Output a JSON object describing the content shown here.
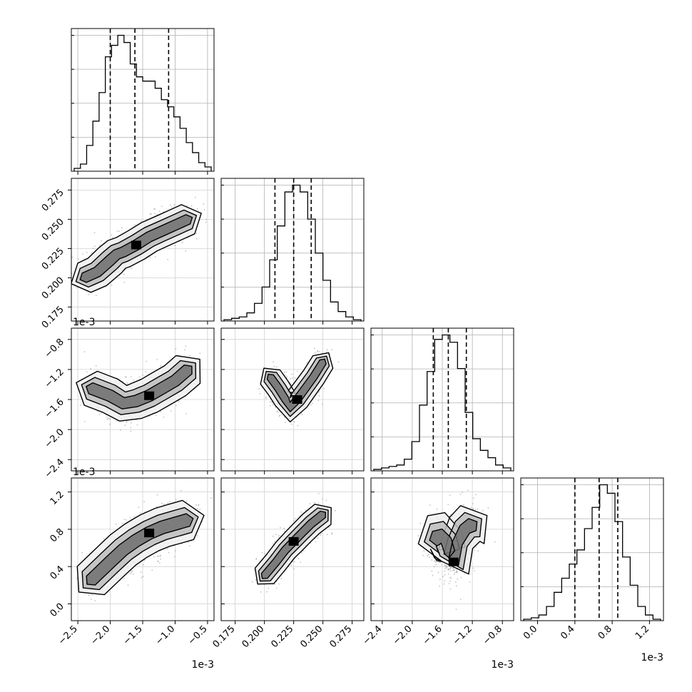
{
  "chart_data": {
    "type": "corner",
    "grid": true,
    "variables": [
      {
        "range": [
          -2.6,
          -0.4
        ],
        "ticks": [
          -2.5,
          -2.0,
          -1.5,
          -1.0,
          -0.5
        ],
        "tick_labels": [
          "−2.5",
          "−2.0",
          "−1.5",
          "−1.0",
          "−0.5"
        ],
        "offset_label": "1e-3",
        "quantiles": [
          -2.0,
          -1.62,
          -1.1
        ]
      },
      {
        "range": [
          0.163,
          0.285
        ],
        "ticks": [
          0.175,
          0.2,
          0.225,
          0.25,
          0.275
        ],
        "tick_labels": [
          "0.175",
          "0.200",
          "0.225",
          "0.250",
          "0.275"
        ],
        "offset_label": "",
        "quantiles": [
          0.209,
          0.225,
          0.24
        ]
      },
      {
        "range": [
          -2.55,
          -0.65
        ],
        "ticks": [
          -2.4,
          -2.0,
          -1.6,
          -1.2,
          -0.8
        ],
        "tick_labels": [
          "−2.4",
          "−2.0",
          "−1.6",
          "−1.2",
          "−0.8"
        ],
        "offset_label": "1e-3",
        "quantiles": [
          -1.72,
          -1.52,
          -1.28
        ]
      },
      {
        "range": [
          -0.18,
          1.35
        ],
        "ticks": [
          0.0,
          0.4,
          0.8,
          1.2
        ],
        "tick_labels": [
          "0.0",
          "0.4",
          "0.8",
          "1.2"
        ],
        "offset_label": "1e-3",
        "quantiles": [
          0.4,
          0.66,
          0.86
        ]
      }
    ],
    "histograms": [
      {
        "var": 0,
        "counts": [
          2,
          5,
          18,
          35,
          55,
          80,
          88,
          95,
          90,
          75,
          66,
          63,
          63,
          58,
          50,
          45,
          38,
          30,
          20,
          13,
          6,
          3
        ]
      },
      {
        "var": 1,
        "counts": [
          1,
          2,
          3,
          6,
          13,
          25,
          45,
          70,
          95,
          100,
          95,
          75,
          50,
          30,
          14,
          7,
          3,
          1
        ]
      },
      {
        "var": 2,
        "counts": [
          1,
          2,
          3,
          4,
          8,
          20,
          45,
          68,
          90,
          93,
          88,
          70,
          40,
          22,
          14,
          9,
          4,
          2
        ]
      },
      {
        "var": 3,
        "counts": [
          1,
          2,
          4,
          10,
          20,
          30,
          40,
          50,
          65,
          80,
          96,
          90,
          70,
          45,
          25,
          10,
          4,
          1
        ]
      }
    ],
    "pairs": [
      {
        "x": 0,
        "y": 1,
        "points": [
          [
            -2.4,
            0.2
          ],
          [
            -2.2,
            0.205
          ],
          [
            -2.0,
            0.215
          ],
          [
            -1.9,
            0.22
          ],
          [
            -1.8,
            0.222
          ],
          [
            -1.6,
            0.228
          ],
          [
            -1.4,
            0.235
          ],
          [
            -1.2,
            0.24
          ],
          [
            -1.0,
            0.245
          ],
          [
            -0.8,
            0.25
          ]
        ],
        "spread": [
          0.13,
          0.006
        ]
      },
      {
        "x": 0,
        "y": 2,
        "points": [
          [
            -2.3,
            -1.45
          ],
          [
            -2.0,
            -1.55
          ],
          [
            -1.8,
            -1.65
          ],
          [
            -1.6,
            -1.62
          ],
          [
            -1.4,
            -1.55
          ],
          [
            -1.2,
            -1.45
          ],
          [
            -1.0,
            -1.35
          ],
          [
            -0.8,
            -1.2
          ]
        ],
        "spread": [
          0.13,
          0.11
        ]
      },
      {
        "x": 1,
        "y": 2,
        "points": [
          [
            0.205,
            -1.3
          ],
          [
            0.212,
            -1.45
          ],
          [
            0.218,
            -1.6
          ],
          [
            0.222,
            -1.7
          ],
          [
            0.228,
            -1.6
          ],
          [
            0.235,
            -1.45
          ],
          [
            0.242,
            -1.3
          ],
          [
            0.25,
            -1.1
          ]
        ],
        "spread": [
          0.004,
          0.09
        ]
      },
      {
        "x": 0,
        "y": 3,
        "points": [
          [
            -2.3,
            0.25
          ],
          [
            -2.0,
            0.45
          ],
          [
            -1.8,
            0.58
          ],
          [
            -1.6,
            0.68
          ],
          [
            -1.4,
            0.76
          ],
          [
            -1.2,
            0.82
          ],
          [
            -1.0,
            0.86
          ],
          [
            -0.8,
            0.9
          ]
        ],
        "spread": [
          0.13,
          0.1
        ]
      },
      {
        "x": 1,
        "y": 3,
        "points": [
          [
            0.2,
            0.3
          ],
          [
            0.21,
            0.45
          ],
          [
            0.218,
            0.58
          ],
          [
            0.225,
            0.67
          ],
          [
            0.232,
            0.76
          ],
          [
            0.24,
            0.86
          ],
          [
            0.25,
            0.96
          ]
        ],
        "spread": [
          0.004,
          0.07
        ]
      },
      {
        "x": 2,
        "y": 3,
        "points": [
          [
            -1.7,
            0.7
          ],
          [
            -1.62,
            0.72
          ],
          [
            -1.55,
            0.68
          ],
          [
            -1.5,
            0.55
          ],
          [
            -1.45,
            0.45
          ],
          [
            -1.4,
            0.65
          ],
          [
            -1.3,
            0.8
          ],
          [
            -1.2,
            0.85
          ]
        ],
        "spread": [
          0.09,
          0.12
        ]
      }
    ]
  }
}
